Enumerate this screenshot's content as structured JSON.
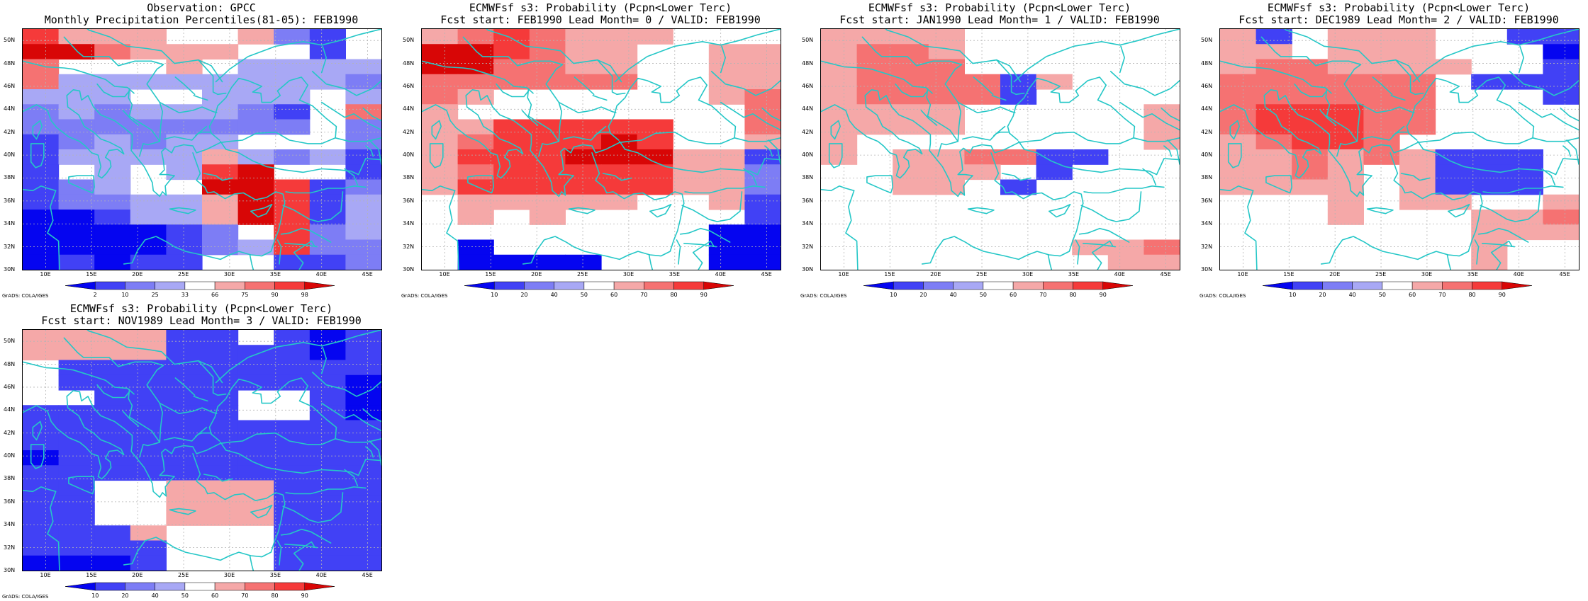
{
  "colors": {
    "coast": "#25c7c7",
    "grid": "#b4b4b4",
    "scale": [
      "#0505f0",
      "#4141f5",
      "#7d7df5",
      "#a8a8f5",
      "#ffffff",
      "#f5a8a8",
      "#f57272",
      "#f53a3a",
      "#d80606"
    ]
  },
  "axes": {
    "lat_labels": [
      "50N",
      "48N",
      "46N",
      "44N",
      "42N",
      "40N",
      "38N",
      "36N",
      "34N",
      "32N",
      "30N"
    ],
    "lon_labels": [
      "10E",
      "15E",
      "20E",
      "25E",
      "30E",
      "35E",
      "40E",
      "45E"
    ]
  },
  "grads_credit": "GrADS: COLA/IGES",
  "panels": [
    {
      "id": "obs",
      "title1": "Observation: GPCC",
      "title2": "Monthly Precipitation Percentiles(81-05): FEB1990",
      "colorbar": [
        "2",
        "10",
        "25",
        "33",
        "66",
        "75",
        "90",
        "98"
      ],
      "grid": [
        "7555445214",
        "8865554414",
        "6444543333",
        "6333333332",
        "3334433343",
        "2323332146",
        "2222222242",
        "1232334442",
        "1333353231",
        "1434378441",
        "1234488712",
        "1223358713",
        "0013358713",
        "0000124723",
        "0000123722",
        "0101144112"
      ]
    },
    {
      "id": "lead0",
      "title1": "ECMWFsf s3: Probability (Pcpn<Lower Terc)",
      "title2": "Fcst start: FEB1990   Lead Month= 0 / VALID: FEB1990",
      "colorbar": [
        "10",
        "20",
        "40",
        "50",
        "60",
        "70",
        "80",
        "90"
      ],
      "grid": [
        "5676555444",
        "8876554455",
        "8866554455",
        "6666664455",
        "6544444456",
        "5444444446",
        "5577777446",
        "5677787445",
        "5777888551",
        "5677777552",
        "5777777552",
        "4555554451",
        "4545444441",
        "4444444400",
        "4044444400",
        "4000044400"
      ]
    },
    {
      "id": "lead1",
      "title1": "ECMWFsf s3: Probability (Pcpn<Lower Terc)",
      "title2": "Fcst start: JAN1990   Lead Month= 1 / VALID: FEB1990",
      "colorbar": [
        "10",
        "20",
        "40",
        "50",
        "60",
        "70",
        "80",
        "90"
      ],
      "grid": [
        "5555444444",
        "5665444444",
        "5666444444",
        "5666615444",
        "5666614444",
        "5555444445",
        "5555444445",
        "5444444445",
        "5455661144",
        "4455541444",
        "4455414444",
        "4444444444",
        "4444444444",
        "4444444444",
        "4444444556",
        "4444444455"
      ]
    },
    {
      "id": "lead2",
      "title1": "ECMWFsf s3: Probability (Pcpn<Lower Terc)",
      "title2": "Fcst start: DEC1989   Lead Month= 2 / VALID: FEB1990",
      "colorbar": [
        "10",
        "20",
        "40",
        "50",
        "60",
        "70",
        "80",
        "90"
      ],
      "grid": [
        "5145554411",
        "5545554440",
        "5665555441",
        "6666664111",
        "6666664441",
        "6777664444",
        "6777664444",
        "5677644444",
        "5565651114",
        "5565451114",
        "5555451114",
        "4445455445",
        "4445444556",
        "4444444555",
        "4444444544",
        "4444444544"
      ]
    },
    {
      "id": "lead3",
      "title1": "ECMWFsf s3: Probability (Pcpn<Lower Terc)",
      "title2": "Fcst start: NOV1989   Lead Month= 3 / VALID: FEB1990",
      "colorbar": [
        "10",
        "20",
        "40",
        "50",
        "60",
        "70",
        "80",
        "90"
      ],
      "grid": [
        "5555114101",
        "5555111101",
        "4111111111",
        "4111111110",
        "4411114410",
        "1111114410",
        "1111111111",
        "1111111111",
        "0111111111",
        "1111111111",
        "1144555111",
        "1144555111",
        "1144555111",
        "1115444111",
        "1111444111",
        "0001444111"
      ]
    }
  ]
}
